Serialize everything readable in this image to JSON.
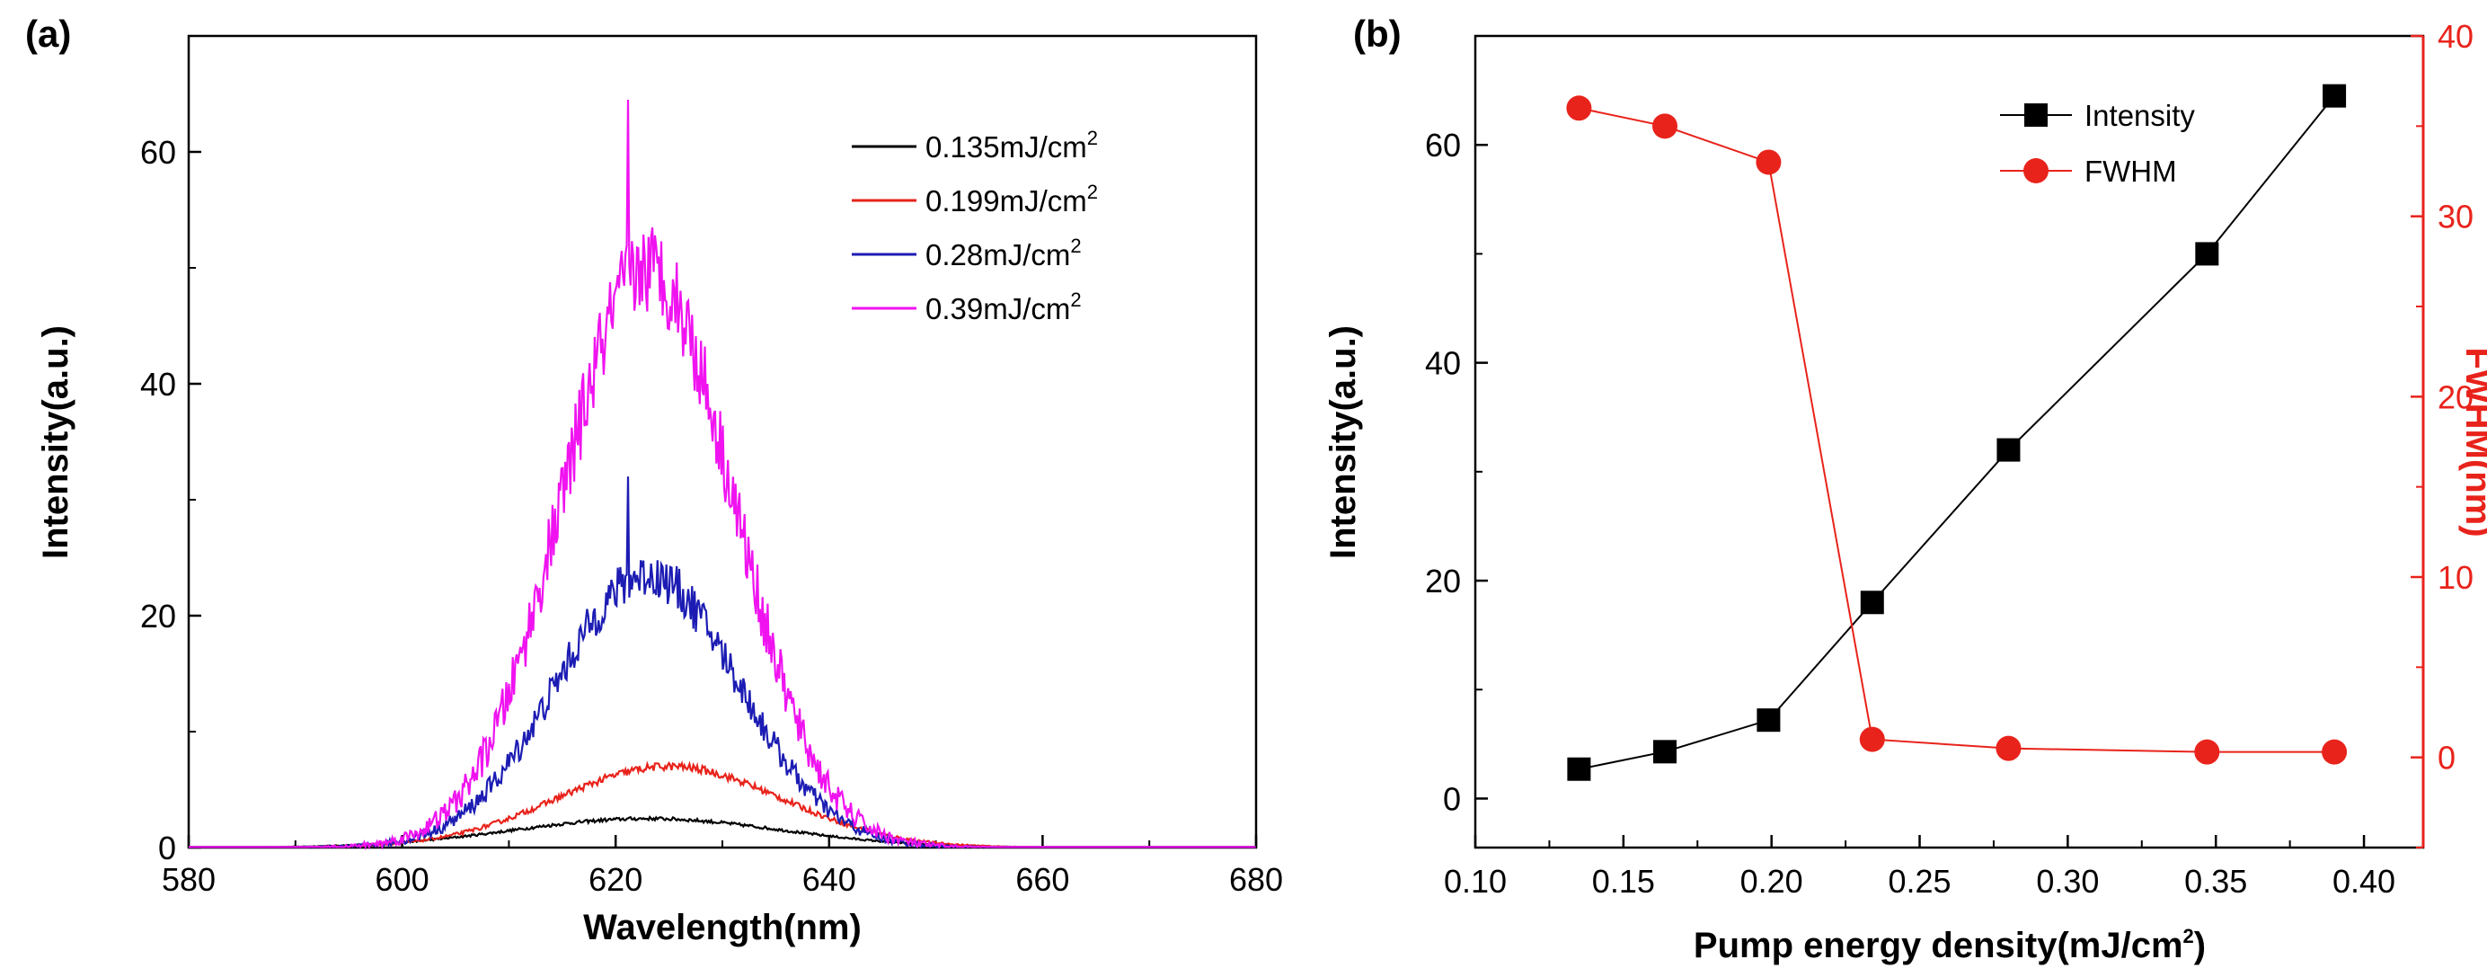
{
  "colors": {
    "axis": "#000000",
    "right_axis": "#e8231b",
    "s1": "#000000",
    "s2": "#e8231b",
    "s3": "#1c1cb4",
    "s4": "#f013f0",
    "intensity": "#000000",
    "fwhm": "#e8231b"
  },
  "chart_data": [
    {
      "panel_label": "(a)",
      "type": "line",
      "xlabel": "Wavelength(nm)",
      "ylabel": "Intensity(a.u.)",
      "xlim": [
        580,
        680
      ],
      "ylim": [
        0,
        70
      ],
      "xticks": [
        580,
        600,
        620,
        640,
        660,
        680
      ],
      "yticks": [
        0,
        20,
        40,
        60
      ],
      "legend_position": "top-right",
      "series": [
        {
          "name": "0.135mJ/cm",
          "sup": "2",
          "peak_x": 623,
          "peak_y": 2.5,
          "sigma": 12.5,
          "noise": 0.15
        },
        {
          "name": "0.199mJ/cm",
          "sup": "2",
          "peak_x": 625,
          "peak_y": 7.0,
          "sigma": 10.5,
          "noise": 0.35
        },
        {
          "name": "0.28mJ/cm",
          "sup": "2",
          "peak_x": 623,
          "peak_y": 23.5,
          "sigma": 8.5,
          "noise": 2.0,
          "max": 32
        },
        {
          "name": "0.39mJ/cm",
          "sup": "2",
          "peak_x": 623,
          "peak_y": 50,
          "sigma": 8.0,
          "noise": 4.0,
          "max": 64.5
        }
      ]
    },
    {
      "panel_label": "(b)",
      "type": "line",
      "xlabel": "Pump energy density(mJ/cm",
      "xlabel_sup": "2",
      "xlabel_end": ")",
      "ylabel": "Intensity(a.u.)",
      "y2label": "FWHM(nm)",
      "xlim": [
        0.1,
        0.42
      ],
      "ylim": [
        -4.5,
        70
      ],
      "y2lim": [
        -5,
        40
      ],
      "xticks": [
        "0.10",
        "0.15",
        "0.20",
        "0.25",
        "0.30",
        "0.35",
        "0.40"
      ],
      "yticks": [
        0,
        20,
        40,
        60
      ],
      "y2ticks": [
        0,
        10,
        20,
        30,
        40
      ],
      "legend_position": "top-center",
      "series": [
        {
          "name": "Intensity",
          "axis": "left",
          "marker": "square",
          "x": [
            0.135,
            0.164,
            0.199,
            0.234,
            0.28,
            0.347,
            0.39
          ],
          "y": [
            2.7,
            4.3,
            7.2,
            18,
            32,
            50,
            64.5
          ]
        },
        {
          "name": "FWHM",
          "axis": "right",
          "marker": "circle",
          "x": [
            0.135,
            0.164,
            0.199,
            0.234,
            0.28,
            0.347,
            0.39
          ],
          "y": [
            36,
            35,
            33,
            1,
            0.5,
            0.3,
            0.3
          ]
        }
      ]
    }
  ]
}
